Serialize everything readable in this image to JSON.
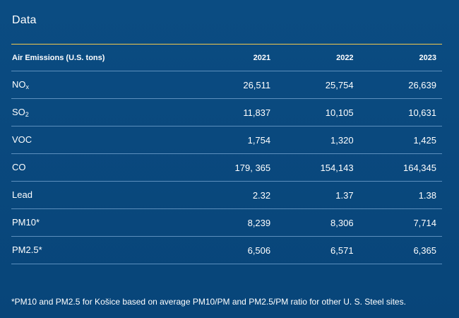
{
  "title": "Data",
  "table": {
    "header": {
      "label": "Air Emissions (U.S. tons)",
      "years": [
        "2021",
        "2022",
        "2023"
      ]
    },
    "rows": [
      {
        "label_main": "NO",
        "label_sub": "x",
        "values": [
          "26,511",
          "25,754",
          "26,639"
        ]
      },
      {
        "label_main": "SO",
        "label_sub": "2",
        "values": [
          "11,837",
          "10,105",
          "10,631"
        ]
      },
      {
        "label_main": "VOC",
        "label_sub": "",
        "values": [
          "1,754",
          "1,320",
          "1,425"
        ]
      },
      {
        "label_main": "CO",
        "label_sub": "",
        "values": [
          "179, 365",
          "154,143",
          "164,345"
        ]
      },
      {
        "label_main": "Lead",
        "label_sub": "",
        "values": [
          "2.32",
          "1.37",
          "1.38"
        ]
      },
      {
        "label_main": "PM10*",
        "label_sub": "",
        "values": [
          "8,239",
          "8,306",
          "7,714"
        ]
      },
      {
        "label_main": "PM2.5*",
        "label_sub": "",
        "values": [
          "6,506",
          "6,571",
          "6,365"
        ]
      }
    ]
  },
  "footnote": "*PM10 and PM2.5 for Košice based on average PM10/PM and PM2.5/PM ratio for other U. S. Steel sites.",
  "colors": {
    "background": "#0b4c82",
    "header_rule": "#f2c94c",
    "row_divider": "#5c8fbd",
    "text": "#ffffff"
  }
}
